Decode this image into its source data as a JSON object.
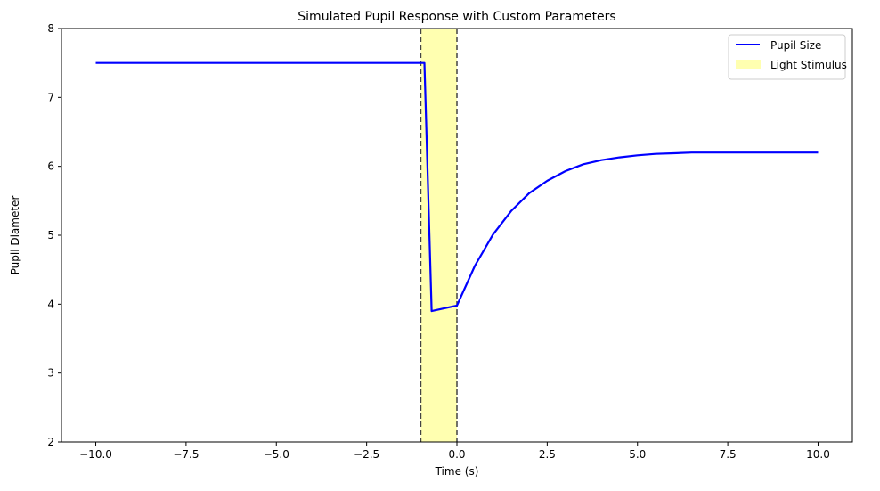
{
  "chart_data": {
    "type": "line",
    "title": "Simulated Pupil Response with Custom Parameters",
    "xlabel": "Time (s)",
    "ylabel": "Pupil Diameter",
    "xlim": [
      -10.95,
      10.95
    ],
    "ylim": [
      2,
      8
    ],
    "x_ticks": [
      -10.0,
      -7.5,
      -5.0,
      -2.5,
      0.0,
      2.5,
      5.0,
      7.5,
      10.0
    ],
    "x_tick_labels": [
      "−10.0",
      "−7.5",
      "−5.0",
      "−2.5",
      "0.0",
      "2.5",
      "5.0",
      "7.5",
      "10.0"
    ],
    "y_ticks": [
      2,
      3,
      4,
      5,
      6,
      7,
      8
    ],
    "y_tick_labels": [
      "2",
      "3",
      "4",
      "5",
      "6",
      "7",
      "8"
    ],
    "grid": false,
    "legend_position": "top-right",
    "series": [
      {
        "name": "Pupil Size",
        "color": "#0000ff",
        "x": [
          -10.0,
          -1.0,
          -0.9,
          -0.7,
          0.0,
          0.5,
          1.0,
          1.5,
          2.0,
          2.5,
          3.0,
          3.5,
          4.0,
          4.5,
          5.0,
          5.5,
          6.0,
          6.5,
          7.0,
          7.5,
          8.0,
          8.5,
          9.0,
          9.5,
          10.0
        ],
        "y": [
          7.5,
          7.5,
          7.5,
          3.9,
          3.98,
          4.56,
          5.01,
          5.35,
          5.61,
          5.79,
          5.93,
          6.03,
          6.09,
          6.13,
          6.16,
          6.18,
          6.19,
          6.2,
          6.2,
          6.2,
          6.2,
          6.2,
          6.2,
          6.2,
          6.2
        ]
      }
    ],
    "stimulus": {
      "name": "Light Stimulus",
      "x_start": -1.0,
      "x_end": 0.0,
      "color": "#ffffb0",
      "boundary_color": "#444444"
    }
  }
}
